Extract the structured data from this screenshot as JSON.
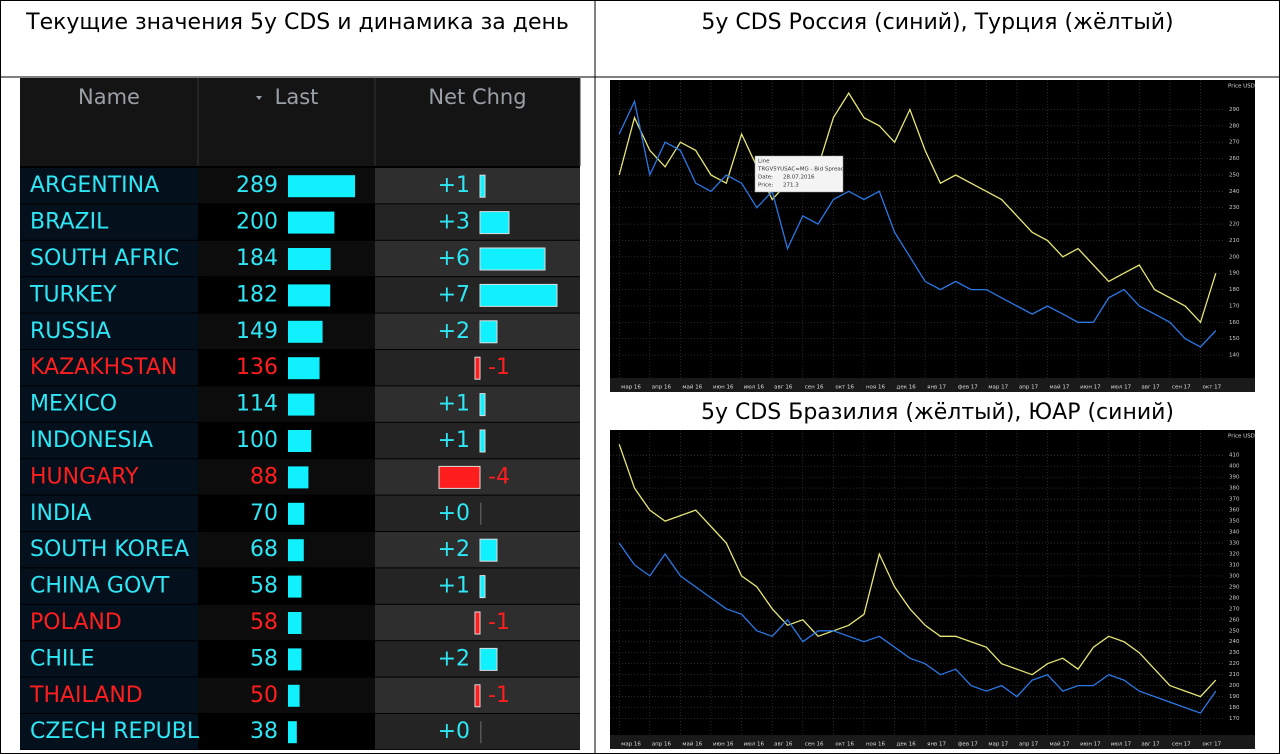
{
  "header": {
    "left_title": "Текущие значения 5y CDS и динамика за день"
  },
  "table": {
    "columns": [
      "Name",
      "Last",
      "Net Chng"
    ],
    "rows": [
      {
        "name": "ARGENTINA",
        "last": 289,
        "net": 1,
        "net_label": "+1"
      },
      {
        "name": "BRAZIL",
        "last": 200,
        "net": 3,
        "net_label": "+3"
      },
      {
        "name": "SOUTH AFRIC",
        "last": 184,
        "net": 6,
        "net_label": "+6"
      },
      {
        "name": "TURKEY",
        "last": 182,
        "net": 7,
        "net_label": "+7"
      },
      {
        "name": "RUSSIA",
        "last": 149,
        "net": 2,
        "net_label": "+2"
      },
      {
        "name": "KAZAKHSTAN",
        "last": 136,
        "net": -1,
        "net_label": "-1"
      },
      {
        "name": "MEXICO",
        "last": 114,
        "net": 1,
        "net_label": "+1"
      },
      {
        "name": "INDONESIA",
        "last": 100,
        "net": 1,
        "net_label": "+1"
      },
      {
        "name": "HUNGARY",
        "last": 88,
        "net": -4,
        "net_label": "-4"
      },
      {
        "name": "INDIA",
        "last": 70,
        "net": 0,
        "net_label": "+0"
      },
      {
        "name": "SOUTH KOREA",
        "last": 68,
        "net": 2,
        "net_label": "+2"
      },
      {
        "name": "CHINA GOVT",
        "last": 58,
        "net": 1,
        "net_label": "+1"
      },
      {
        "name": "POLAND",
        "last": 58,
        "net": -1,
        "net_label": "-1"
      },
      {
        "name": "CHILE",
        "last": 58,
        "net": 2,
        "net_label": "+2"
      },
      {
        "name": "THAILAND",
        "last": 50,
        "net": -1,
        "net_label": "-1"
      },
      {
        "name": "CZECH REPUBL",
        "last": 38,
        "net": 0,
        "net_label": "+0"
      }
    ]
  },
  "chart_data": [
    {
      "type": "line",
      "title": "5y CDS Россия (синий), Турция (жёлтый)",
      "y_label": "Price USD",
      "annotation": [
        "Line",
        "TRGV5YUSAC=MG - Bid Spread",
        "Date:",
        "28.07.2016",
        "Price:",
        "271.3"
      ],
      "x": [
        0,
        0.5,
        1,
        1.5,
        2,
        2.5,
        3,
        3.5,
        4,
        4.5,
        5,
        5.5,
        6,
        6.5,
        7,
        7.5,
        8,
        8.5,
        9,
        9.5,
        10,
        10.5,
        11,
        11.5,
        12,
        12.5,
        13,
        13.5,
        14,
        14.5,
        15,
        15.5,
        16,
        16.5,
        17,
        17.5,
        18,
        18.5,
        19,
        19.5
      ],
      "xlim": [
        -0.3,
        19.8
      ],
      "xticks": [
        {
          "value": 0,
          "label": "мар 16"
        },
        {
          "value": 1,
          "label": "апр 16"
        },
        {
          "value": 2,
          "label": "май 16"
        },
        {
          "value": 3,
          "label": "июн 16"
        },
        {
          "value": 4,
          "label": "июл 16"
        },
        {
          "value": 5,
          "label": "авг 16"
        },
        {
          "value": 6,
          "label": "сен 16"
        },
        {
          "value": 7,
          "label": "окт 16"
        },
        {
          "value": 8,
          "label": "ноя 16"
        },
        {
          "value": 9,
          "label": "дек 16"
        },
        {
          "value": 10,
          "label": "янв 17"
        },
        {
          "value": 11,
          "label": "фев 17"
        },
        {
          "value": 12,
          "label": "мар 17"
        },
        {
          "value": 13,
          "label": "апр 17"
        },
        {
          "value": 14,
          "label": "май 17"
        },
        {
          "value": 15,
          "label": "июн 17"
        },
        {
          "value": 16,
          "label": "июл 17"
        },
        {
          "value": 17,
          "label": "авг 17"
        },
        {
          "value": 18,
          "label": "сен 17"
        },
        {
          "value": 19,
          "label": "окт 17"
        }
      ],
      "ylim": [
        126,
        308
      ],
      "yticks": [
        140,
        150,
        160,
        170,
        180,
        190,
        200,
        210,
        220,
        230,
        240,
        250,
        260,
        270,
        280,
        290
      ],
      "grid": true,
      "series": [
        {
          "name": "Турция",
          "color": "#e6e676",
          "values": [
            250,
            285,
            265,
            255,
            270,
            265,
            250,
            245,
            275,
            255,
            235,
            245,
            250,
            255,
            285,
            300,
            285,
            280,
            270,
            290,
            265,
            245,
            250,
            245,
            240,
            235,
            225,
            215,
            210,
            200,
            205,
            195,
            185,
            190,
            195,
            180,
            175,
            170,
            160,
            190
          ]
        },
        {
          "name": "Россия",
          "color": "#2a78e4",
          "values": [
            275,
            295,
            250,
            270,
            265,
            245,
            240,
            250,
            245,
            230,
            240,
            205,
            225,
            220,
            235,
            240,
            235,
            240,
            215,
            200,
            185,
            180,
            185,
            180,
            180,
            175,
            170,
            165,
            170,
            165,
            160,
            160,
            175,
            180,
            170,
            165,
            160,
            150,
            145,
            155
          ]
        }
      ]
    },
    {
      "type": "line",
      "title": "5y CDS Бразилия (жёлтый), ЮАР (синий)",
      "y_label": "Price USD",
      "x": [
        0,
        0.5,
        1,
        1.5,
        2,
        2.5,
        3,
        3.5,
        4,
        4.5,
        5,
        5.5,
        6,
        6.5,
        7,
        7.5,
        8,
        8.5,
        9,
        9.5,
        10,
        10.5,
        11,
        11.5,
        12,
        12.5,
        13,
        13.5,
        14,
        14.5,
        15,
        15.5,
        16,
        16.5,
        17,
        17.5,
        18,
        18.5,
        19,
        19.5
      ],
      "xlim": [
        -0.3,
        19.8
      ],
      "xticks": [
        {
          "value": 0,
          "label": "мар 16"
        },
        {
          "value": 1,
          "label": "апр 16"
        },
        {
          "value": 2,
          "label": "май 16"
        },
        {
          "value": 3,
          "label": "июн 16"
        },
        {
          "value": 4,
          "label": "июл 16"
        },
        {
          "value": 5,
          "label": "авг 16"
        },
        {
          "value": 6,
          "label": "сен 16"
        },
        {
          "value": 7,
          "label": "окт 16"
        },
        {
          "value": 8,
          "label": "ноя 16"
        },
        {
          "value": 9,
          "label": "дек 16"
        },
        {
          "value": 10,
          "label": "янв 17"
        },
        {
          "value": 11,
          "label": "фев 17"
        },
        {
          "value": 12,
          "label": "мар 17"
        },
        {
          "value": 13,
          "label": "апр 17"
        },
        {
          "value": 14,
          "label": "май 17"
        },
        {
          "value": 15,
          "label": "июн 17"
        },
        {
          "value": 16,
          "label": "июл 17"
        },
        {
          "value": 17,
          "label": "авг 17"
        },
        {
          "value": 18,
          "label": "сен 17"
        },
        {
          "value": 19,
          "label": "окт 17"
        }
      ],
      "ylim": [
        155,
        433
      ],
      "yticks": [
        170,
        180,
        190,
        200,
        210,
        220,
        230,
        240,
        250,
        260,
        270,
        280,
        290,
        300,
        310,
        320,
        330,
        340,
        350,
        360,
        370,
        380,
        390,
        400,
        410
      ],
      "grid": true,
      "series": [
        {
          "name": "Бразилия",
          "color": "#e6e676",
          "values": [
            420,
            380,
            360,
            350,
            355,
            360,
            345,
            330,
            300,
            290,
            270,
            255,
            260,
            245,
            250,
            255,
            265,
            320,
            290,
            270,
            255,
            245,
            245,
            240,
            235,
            220,
            215,
            210,
            220,
            225,
            215,
            235,
            245,
            240,
            230,
            215,
            200,
            195,
            190,
            205
          ]
        },
        {
          "name": "ЮАР",
          "color": "#2a78e4",
          "values": [
            330,
            310,
            300,
            320,
            300,
            290,
            280,
            270,
            265,
            250,
            245,
            260,
            240,
            250,
            250,
            245,
            240,
            245,
            235,
            225,
            220,
            210,
            215,
            200,
            195,
            200,
            190,
            205,
            210,
            195,
            200,
            200,
            210,
            205,
            195,
            190,
            185,
            180,
            175,
            195
          ]
        }
      ]
    }
  ]
}
